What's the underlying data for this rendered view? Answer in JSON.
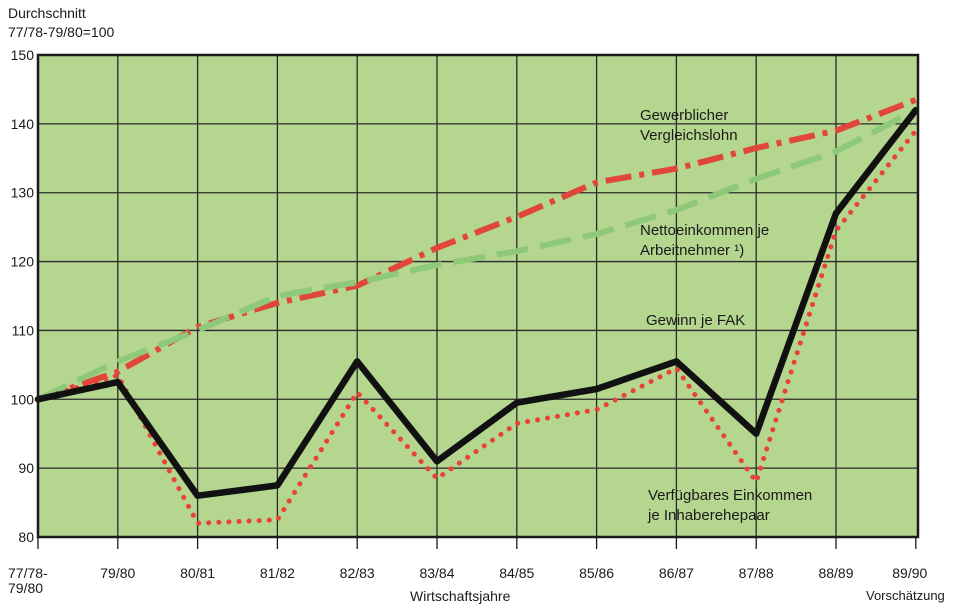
{
  "chart_data": {
    "type": "line",
    "ylabel_line1": "Durchschnitt",
    "ylabel_line2": "77/78-79/80=100",
    "xlabel": "Wirtschaftsjahre",
    "x_note": "Vorschätzung",
    "categories": [
      "77/78-79/80",
      "79/80",
      "80/81",
      "81/82",
      "82/83",
      "83/84",
      "84/85",
      "85/86",
      "86/87",
      "87/88",
      "88/89",
      "89/90"
    ],
    "ylim": [
      80,
      150
    ],
    "yticks": [
      80,
      90,
      100,
      110,
      120,
      130,
      140,
      150
    ],
    "grid": true,
    "background_color": "#b5d68f",
    "series": [
      {
        "name": "Gewerblicher Vergleichslohn",
        "color": "#e0473a",
        "style": "dashdot",
        "values": [
          100,
          104,
          110.5,
          114,
          116.5,
          122,
          126.5,
          131.5,
          133.5,
          136.5,
          139,
          143.5
        ]
      },
      {
        "name": "Nettoeinkommen je Arbeitnehmer ¹)",
        "color": "#8ec97a",
        "style": "dashed",
        "values": [
          100,
          105.5,
          110,
          115,
          117,
          119.5,
          121.5,
          124,
          127.5,
          132,
          136,
          142
        ]
      },
      {
        "name": "Gewinn je FAK",
        "color": "#111111",
        "style": "solid",
        "values": [
          100,
          102.5,
          86,
          87.5,
          105.5,
          91,
          99.5,
          101.5,
          105.5,
          95,
          127,
          142
        ]
      },
      {
        "name": "Verfügbares Einkommen je Inhaberehepaar",
        "color": "#e8423a",
        "style": "dotted",
        "values": [
          100,
          103.5,
          82,
          82.5,
          101,
          88.5,
          96.5,
          98.5,
          104.5,
          88,
          124.5,
          139
        ]
      }
    ],
    "annotations": [
      {
        "series": 0,
        "line1": "Gewerblicher",
        "line2": "Vergleichslohn"
      },
      {
        "series": 1,
        "line1": "Nettoeinkommen je",
        "line2": "Arbeitnehmer ¹)"
      },
      {
        "series": 2,
        "line1": "Gewinn je FAK",
        "line2": ""
      },
      {
        "series": 3,
        "line1": "Verfügbares Einkommen",
        "line2": "je Inhaberehepaar"
      }
    ]
  }
}
